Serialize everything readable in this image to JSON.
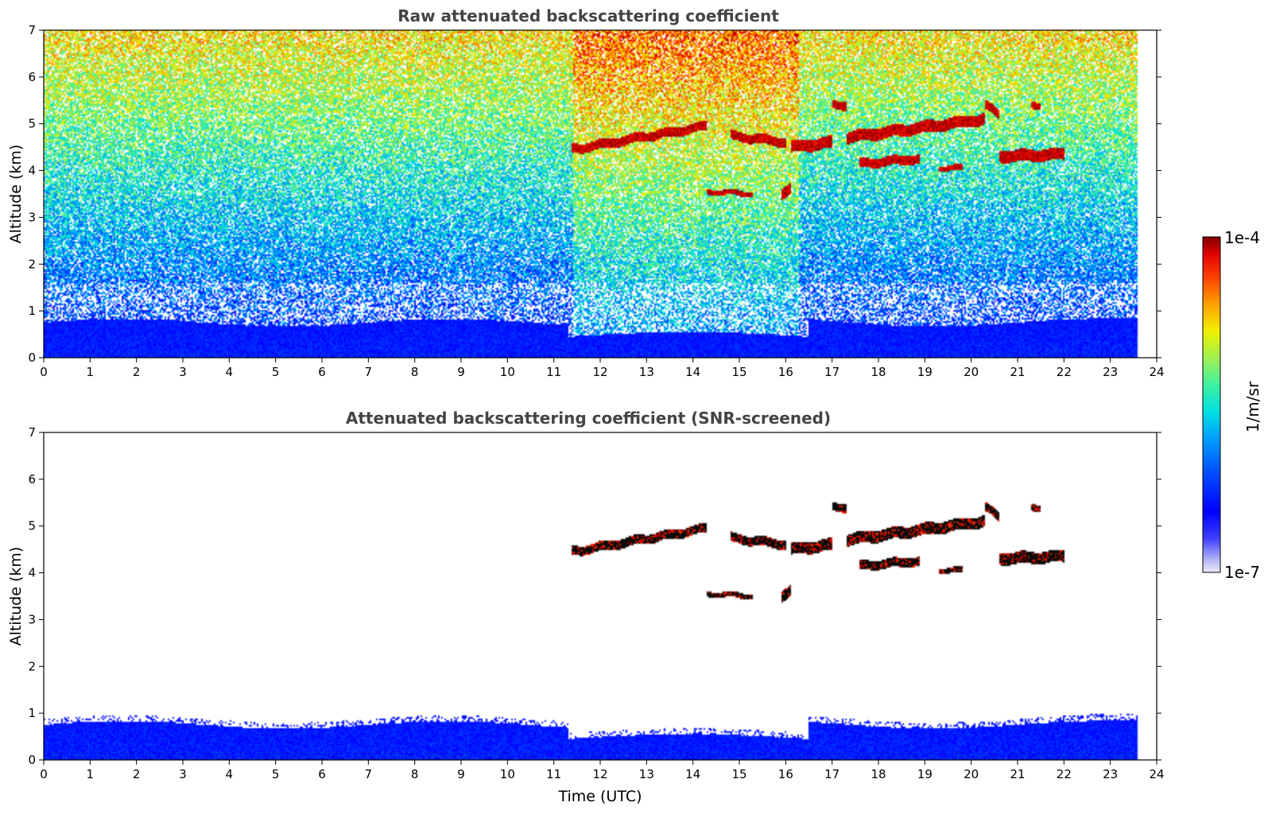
{
  "chart_data": [
    {
      "type": "heatmap",
      "title": "Raw attenuated backscattering coefficient",
      "xlabel": "",
      "ylabel": "Altitude (km)",
      "xlim": [
        0,
        24
      ],
      "ylim": [
        0,
        7
      ],
      "xticks": [
        "0",
        "1",
        "2",
        "3",
        "4",
        "5",
        "6",
        "7",
        "8",
        "9",
        "10",
        "11",
        "12",
        "13",
        "14",
        "15",
        "16",
        "17",
        "18",
        "19",
        "20",
        "21",
        "22",
        "23",
        "24"
      ],
      "yticks": [
        "0",
        "1",
        "2",
        "3",
        "4",
        "5",
        "6",
        "7"
      ],
      "data_end_time": 23.6,
      "background_layer": {
        "top_km": 0.8,
        "description_level": "1e-6"
      },
      "noise": true,
      "cloud_layers": [
        {
          "t0": 11.4,
          "t1": 14.3,
          "alt_start": 4.45,
          "alt_end": 4.95,
          "thickness": 0.2
        },
        {
          "t0": 14.8,
          "t1": 16.0,
          "alt_start": 4.75,
          "alt_end": 4.6,
          "thickness": 0.2
        },
        {
          "t0": 16.1,
          "t1": 17.0,
          "alt_start": 4.5,
          "alt_end": 4.6,
          "thickness": 0.25
        },
        {
          "t0": 17.3,
          "t1": 20.3,
          "alt_start": 4.7,
          "alt_end": 5.1,
          "thickness": 0.25
        },
        {
          "t0": 17.0,
          "t1": 17.3,
          "alt_start": 5.4,
          "alt_end": 5.4,
          "thickness": 0.18
        },
        {
          "t0": 17.6,
          "t1": 18.9,
          "alt_start": 4.15,
          "alt_end": 4.25,
          "thickness": 0.2
        },
        {
          "t0": 19.3,
          "t1": 19.8,
          "alt_start": 4.05,
          "alt_end": 4.05,
          "thickness": 0.12
        },
        {
          "t0": 20.6,
          "t1": 22.0,
          "alt_start": 4.3,
          "alt_end": 4.35,
          "thickness": 0.25
        },
        {
          "t0": 14.3,
          "t1": 15.3,
          "alt_start": 3.55,
          "alt_end": 3.5,
          "thickness": 0.12
        },
        {
          "t0": 15.9,
          "t1": 16.1,
          "alt_start": 3.5,
          "alt_end": 3.6,
          "thickness": 0.25
        },
        {
          "t0": 20.3,
          "t1": 20.6,
          "alt_start": 5.4,
          "alt_end": 5.2,
          "thickness": 0.2
        },
        {
          "t0": 21.3,
          "t1": 21.5,
          "alt_start": 5.4,
          "alt_end": 5.4,
          "thickness": 0.15
        }
      ]
    },
    {
      "type": "heatmap",
      "title": "Attenuated backscattering coefficient (SNR-screened)",
      "xlabel": "Time (UTC)",
      "ylabel": "Altitude (km)",
      "xlim": [
        0,
        24
      ],
      "ylim": [
        0,
        7
      ],
      "xticks": [
        "0",
        "1",
        "2",
        "3",
        "4",
        "5",
        "6",
        "7",
        "8",
        "9",
        "10",
        "11",
        "12",
        "13",
        "14",
        "15",
        "16",
        "17",
        "18",
        "19",
        "20",
        "21",
        "22",
        "23",
        "24"
      ],
      "yticks": [
        "0",
        "1",
        "2",
        "3",
        "4",
        "5",
        "6",
        "7"
      ],
      "data_end_time": 23.6,
      "background_layer": {
        "top_km": 0.85,
        "description_level": "1e-6"
      },
      "noise": false,
      "cloud_layers": "same as raw panel, rendered with dark cores"
    }
  ],
  "colorbar": {
    "label": "1/m/sr",
    "max_label": "1e-4",
    "min_label": "1e-7",
    "scale": "log",
    "colormap": "jet"
  }
}
